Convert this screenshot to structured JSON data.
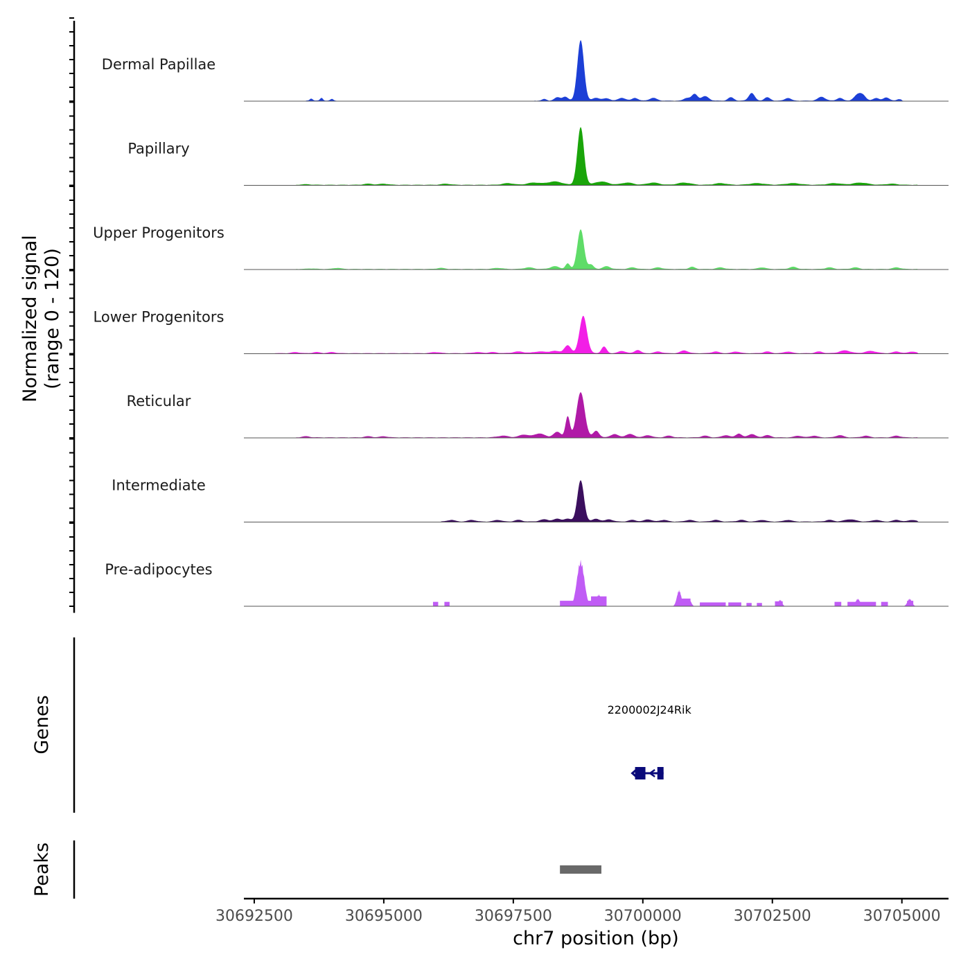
{
  "chart_data": {
    "type": "area",
    "title": "",
    "xlabel": "chr7 position (bp)",
    "ylabel_line1": "Normalized signal",
    "ylabel_line2": "(range 0 - 120)",
    "ylim": [
      0,
      120
    ],
    "xlim": [
      30692300,
      30705900
    ],
    "x_ticks": [
      30692500,
      30695000,
      30697500,
      30700000,
      30702500,
      30705000
    ],
    "x_tick_labels": [
      "30692500",
      "30695000",
      "30697500",
      "30700000",
      "30702500",
      "30705000"
    ],
    "series": [
      {
        "name": "Dermal Papillae",
        "color": "#1c3fd6",
        "baseline": [
          [
            30693500,
            30694100
          ],
          [
            30697900,
            30705000
          ]
        ],
        "peaks": [
          [
            30693600,
            4,
            40
          ],
          [
            30693800,
            5,
            40
          ],
          [
            30694000,
            3,
            40
          ],
          [
            30698100,
            3,
            60
          ],
          [
            30698350,
            6,
            80
          ],
          [
            30698500,
            7,
            80
          ],
          [
            30698800,
            110,
            90
          ],
          [
            30699100,
            5,
            100
          ],
          [
            30699300,
            4,
            100
          ],
          [
            30699600,
            5,
            100
          ],
          [
            30699850,
            5,
            80
          ],
          [
            30700200,
            5,
            100
          ],
          [
            30700850,
            5,
            80
          ],
          [
            30701000,
            12,
            80
          ],
          [
            30701200,
            8,
            100
          ],
          [
            30701700,
            6,
            80
          ],
          [
            30702100,
            14,
            80
          ],
          [
            30702400,
            6,
            80
          ],
          [
            30702800,
            5,
            80
          ],
          [
            30703450,
            7,
            100
          ],
          [
            30703800,
            5,
            80
          ],
          [
            30704150,
            11,
            100
          ],
          [
            30704250,
            8,
            80
          ],
          [
            30704500,
            5,
            80
          ],
          [
            30704700,
            6,
            80
          ],
          [
            30704950,
            3,
            60
          ]
        ]
      },
      {
        "name": "Papillary",
        "color": "#1aa50a",
        "baseline": [
          [
            30693300,
            30705300
          ]
        ],
        "peaks": [
          [
            30693500,
            1,
            120
          ],
          [
            30694700,
            2,
            120
          ],
          [
            30695000,
            2,
            120
          ],
          [
            30696200,
            2,
            120
          ],
          [
            30697400,
            3,
            150
          ],
          [
            30697900,
            4,
            180
          ],
          [
            30698300,
            6,
            200
          ],
          [
            30698800,
            105,
            90
          ],
          [
            30699200,
            6,
            180
          ],
          [
            30699700,
            4,
            160
          ],
          [
            30700200,
            4,
            160
          ],
          [
            30700800,
            4,
            180
          ],
          [
            30701500,
            3,
            160
          ],
          [
            30702200,
            3,
            200
          ],
          [
            30702900,
            3,
            200
          ],
          [
            30703700,
            3,
            180
          ],
          [
            30704200,
            4,
            200
          ],
          [
            30704800,
            2,
            150
          ]
        ]
      },
      {
        "name": "Upper Progenitors",
        "color": "#5fdc68",
        "baseline": [
          [
            30693300,
            30705300
          ]
        ],
        "peaks": [
          [
            30693600,
            1,
            100
          ],
          [
            30694100,
            2,
            100
          ],
          [
            30696100,
            2,
            100
          ],
          [
            30697200,
            2,
            120
          ],
          [
            30697800,
            3,
            120
          ],
          [
            30698300,
            5,
            120
          ],
          [
            30698550,
            10,
            60
          ],
          [
            30698800,
            72,
            90
          ],
          [
            30699000,
            8,
            70
          ],
          [
            30699300,
            5,
            100
          ],
          [
            30699800,
            3,
            100
          ],
          [
            30700300,
            3,
            100
          ],
          [
            30700950,
            4,
            80
          ],
          [
            30701500,
            3,
            100
          ],
          [
            30702300,
            3,
            100
          ],
          [
            30702900,
            4,
            100
          ],
          [
            30703600,
            3,
            100
          ],
          [
            30704100,
            3,
            100
          ],
          [
            30704900,
            3,
            100
          ]
        ]
      },
      {
        "name": "Lower Progenitors",
        "color": "#f21ee6",
        "baseline": [
          [
            30692900,
            30705300
          ]
        ],
        "peaks": [
          [
            30693300,
            2,
            100
          ],
          [
            30693700,
            2,
            100
          ],
          [
            30694000,
            2,
            100
          ],
          [
            30696000,
            2,
            120
          ],
          [
            30696800,
            2,
            120
          ],
          [
            30697100,
            2,
            120
          ],
          [
            30697600,
            3,
            150
          ],
          [
            30698000,
            3,
            150
          ],
          [
            30698300,
            4,
            150
          ],
          [
            30698550,
            14,
            90
          ],
          [
            30698850,
            68,
            100
          ],
          [
            30699250,
            12,
            70
          ],
          [
            30699600,
            4,
            100
          ],
          [
            30699900,
            6,
            80
          ],
          [
            30700300,
            3,
            100
          ],
          [
            30700800,
            5,
            100
          ],
          [
            30701400,
            3,
            100
          ],
          [
            30701800,
            3,
            100
          ],
          [
            30702400,
            3,
            100
          ],
          [
            30702800,
            3,
            100
          ],
          [
            30703400,
            3,
            100
          ],
          [
            30703900,
            5,
            150
          ],
          [
            30704400,
            4,
            150
          ],
          [
            30704900,
            3,
            100
          ],
          [
            30705200,
            3,
            100
          ]
        ]
      },
      {
        "name": "Reticular",
        "color": "#b01aa7",
        "baseline": [
          [
            30693300,
            30705300
          ]
        ],
        "peaks": [
          [
            30693500,
            2,
            100
          ],
          [
            30694700,
            2,
            100
          ],
          [
            30695000,
            2,
            100
          ],
          [
            30697300,
            3,
            150
          ],
          [
            30697700,
            5,
            120
          ],
          [
            30698000,
            7,
            150
          ],
          [
            30698350,
            10,
            100
          ],
          [
            30698550,
            38,
            60
          ],
          [
            30698800,
            82,
            110
          ],
          [
            30699100,
            12,
            80
          ],
          [
            30699450,
            6,
            100
          ],
          [
            30699750,
            6,
            120
          ],
          [
            30700100,
            4,
            100
          ],
          [
            30700500,
            3,
            100
          ],
          [
            30701200,
            3,
            100
          ],
          [
            30701600,
            4,
            100
          ],
          [
            30701850,
            7,
            80
          ],
          [
            30702100,
            6,
            100
          ],
          [
            30702400,
            4,
            100
          ],
          [
            30703000,
            3,
            100
          ],
          [
            30703300,
            3,
            100
          ],
          [
            30703800,
            4,
            100
          ],
          [
            30704300,
            3,
            100
          ],
          [
            30704900,
            3,
            100
          ]
        ]
      },
      {
        "name": "Intermediate",
        "color": "#3b0f5e",
        "baseline": [
          [
            30696100,
            30705300
          ]
        ],
        "peaks": [
          [
            30696300,
            3,
            100
          ],
          [
            30696700,
            3,
            100
          ],
          [
            30697200,
            3,
            100
          ],
          [
            30697600,
            3,
            100
          ],
          [
            30698100,
            4,
            120
          ],
          [
            30698350,
            5,
            100
          ],
          [
            30698550,
            5,
            100
          ],
          [
            30698800,
            75,
            90
          ],
          [
            30699100,
            5,
            100
          ],
          [
            30699350,
            4,
            100
          ],
          [
            30699800,
            3,
            100
          ],
          [
            30700100,
            4,
            100
          ],
          [
            30700400,
            3,
            100
          ],
          [
            30700900,
            3,
            100
          ],
          [
            30701400,
            3,
            100
          ],
          [
            30701900,
            3,
            100
          ],
          [
            30702300,
            3,
            100
          ],
          [
            30702800,
            3,
            100
          ],
          [
            30703600,
            3,
            100
          ],
          [
            30704000,
            4,
            150
          ],
          [
            30704500,
            3,
            100
          ],
          [
            30704900,
            3,
            100
          ],
          [
            30705200,
            3,
            100
          ]
        ]
      }
    ],
    "pre_adipocytes": {
      "name": "Pre-adipocytes",
      "color": "#c05cf5",
      "blocks": [
        [
          30695950,
          30696050,
          8
        ],
        [
          30696170,
          30696270,
          8
        ],
        [
          30698400,
          30699150,
          10
        ],
        [
          30699000,
          30699300,
          18
        ],
        [
          30700700,
          30700920,
          14
        ],
        [
          30701100,
          30701600,
          7
        ],
        [
          30701650,
          30701900,
          7
        ],
        [
          30702000,
          30702100,
          6
        ],
        [
          30702200,
          30702300,
          6
        ],
        [
          30702550,
          30702700,
          9
        ],
        [
          30703700,
          30703830,
          8
        ],
        [
          30703950,
          30704500,
          8
        ],
        [
          30704600,
          30704730,
          8
        ],
        [
          30705100,
          30705220,
          10
        ]
      ],
      "spikes": [
        [
          30698800,
          85,
          100
        ],
        [
          30699150,
          22,
          60
        ],
        [
          30700700,
          30,
          60
        ],
        [
          30700900,
          12,
          50
        ],
        [
          30702650,
          12,
          50
        ],
        [
          30704150,
          14,
          60
        ],
        [
          30705150,
          14,
          60
        ]
      ]
    },
    "genes": [
      {
        "name": "2200002J24Rik",
        "start": 30699850,
        "end": 30700400,
        "strand": "-",
        "color": "#0a0a7a",
        "exons": [
          [
            30699850,
            30700050
          ],
          [
            30700280,
            30700400
          ]
        ]
      }
    ],
    "peaks_track": [
      {
        "start": 30698400,
        "end": 30699200,
        "color": "#696969"
      }
    ]
  },
  "labels": {
    "genes": "Genes",
    "peaks": "Peaks"
  }
}
